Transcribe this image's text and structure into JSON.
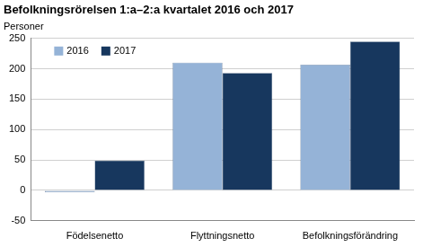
{
  "chart_data": {
    "type": "bar",
    "title": "Befolkningsrörelsen 1:a–2:a kvartalet 2016 och 2017",
    "ylabel": "Personer",
    "categories": [
      "Födelsenetto",
      "Flyttningsnetto",
      "Befolkningsförändring"
    ],
    "series": [
      {
        "name": "2016",
        "color": "#95b3d7",
        "values": [
          -3,
          210,
          207
        ]
      },
      {
        "name": "2017",
        "color": "#17375e",
        "values": [
          49,
          193,
          245
        ]
      }
    ],
    "ylim": [
      -50,
      250
    ],
    "yticks": [
      -50,
      0,
      50,
      100,
      150,
      200,
      250
    ],
    "grid": true,
    "legend": "upper left"
  }
}
